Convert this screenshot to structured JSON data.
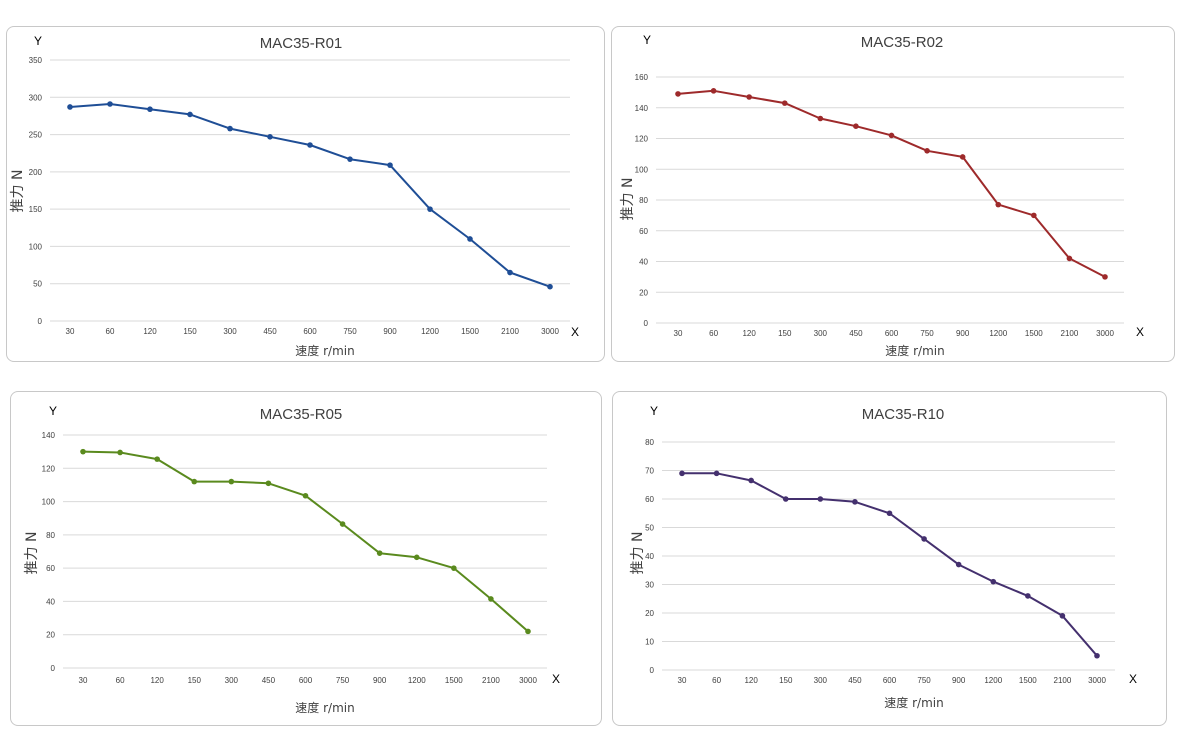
{
  "chart_data": [
    {
      "type": "line",
      "title": "MAC35-R01",
      "xlabel": "速度 r/min",
      "ylabel": "推力 N",
      "x_axis_letter": "X",
      "y_axis_letter": "Y",
      "categories": [
        "30",
        "60",
        "120",
        "150",
        "300",
        "450",
        "600",
        "750",
        "900",
        "1200",
        "1500",
        "2100",
        "3000"
      ],
      "y_ticks": [
        0,
        50,
        100,
        150,
        200,
        250,
        300,
        350
      ],
      "ylim": [
        0,
        350
      ],
      "grid": true,
      "color": "#1f4e96",
      "series": [
        {
          "name": "推力",
          "values": [
            287,
            291,
            284,
            277,
            258,
            247,
            236,
            217,
            209,
            150,
            110,
            65,
            46
          ]
        }
      ]
    },
    {
      "type": "line",
      "title": "MAC35-R02",
      "xlabel": "速度 r/min",
      "ylabel": "推力 N",
      "x_axis_letter": "X",
      "y_axis_letter": "Y",
      "categories": [
        "30",
        "60",
        "120",
        "150",
        "300",
        "450",
        "600",
        "750",
        "900",
        "1200",
        "1500",
        "2100",
        "3000"
      ],
      "y_ticks": [
        0,
        20,
        40,
        60,
        80,
        100,
        120,
        140,
        160
      ],
      "ylim": [
        0,
        160
      ],
      "grid": true,
      "color": "#9e2a2b",
      "series": [
        {
          "name": "推力",
          "values": [
            149,
            151,
            147,
            143,
            133,
            128,
            122,
            112,
            108,
            77,
            70,
            42,
            30
          ]
        }
      ]
    },
    {
      "type": "line",
      "title": "MAC35-R05",
      "xlabel": "速度 r/min",
      "ylabel": "推力 N",
      "x_axis_letter": "X",
      "y_axis_letter": "Y",
      "categories": [
        "30",
        "60",
        "120",
        "150",
        "300",
        "450",
        "600",
        "750",
        "900",
        "1200",
        "1500",
        "2100",
        "3000"
      ],
      "y_ticks": [
        0,
        20,
        40,
        60,
        80,
        100,
        120,
        140
      ],
      "ylim": [
        0,
        140
      ],
      "grid": true,
      "color": "#5a8a1e",
      "series": [
        {
          "name": "推力",
          "values": [
            130,
            129.5,
            125.5,
            112,
            112,
            111,
            103.5,
            86.5,
            69,
            66.5,
            60,
            41.5,
            22
          ]
        }
      ]
    },
    {
      "type": "line",
      "title": "MAC35-R10",
      "xlabel": "速度 r/min",
      "ylabel": "推力 N",
      "x_axis_letter": "X",
      "y_axis_letter": "Y",
      "categories": [
        "30",
        "60",
        "120",
        "150",
        "300",
        "450",
        "600",
        "750",
        "900",
        "1200",
        "1500",
        "2100",
        "3000"
      ],
      "y_ticks": [
        0,
        10,
        20,
        30,
        40,
        50,
        60,
        70,
        80
      ],
      "ylim": [
        0,
        80
      ],
      "grid": true,
      "color": "#44306e",
      "series": [
        {
          "name": "推力",
          "values": [
            69,
            69,
            66.5,
            60,
            60,
            59,
            55,
            46,
            37,
            31,
            26,
            19,
            5
          ]
        }
      ]
    }
  ]
}
